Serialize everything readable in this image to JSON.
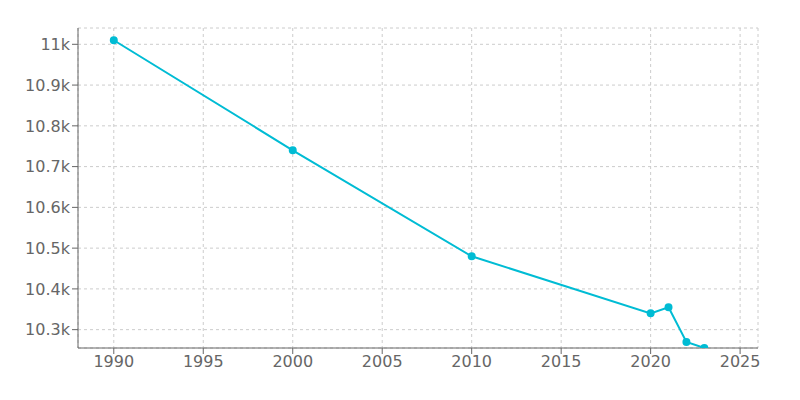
{
  "chart_data": {
    "type": "line",
    "x": [
      1990,
      2000,
      2010,
      2020,
      2021,
      2022,
      2023
    ],
    "values": [
      11010,
      10740,
      10480,
      10340,
      10355,
      10270,
      10255
    ],
    "color": "#00bcd4",
    "marker": "circle",
    "xlim": [
      1988,
      2026
    ],
    "xticks": [
      1990,
      1995,
      2000,
      2005,
      2010,
      2015,
      2020,
      2025
    ],
    "ylim": [
      10255,
      11040
    ],
    "yticks": [
      {
        "value": 10300,
        "label": "10.3k"
      },
      {
        "value": 10400,
        "label": "10.4k"
      },
      {
        "value": 10500,
        "label": "10.5k"
      },
      {
        "value": 10600,
        "label": "10.6k"
      },
      {
        "value": 10700,
        "label": "10.7k"
      },
      {
        "value": 10800,
        "label": "10.8k"
      },
      {
        "value": 10900,
        "label": "10.9k"
      },
      {
        "value": 11000,
        "label": "11k"
      }
    ],
    "grid": true
  }
}
